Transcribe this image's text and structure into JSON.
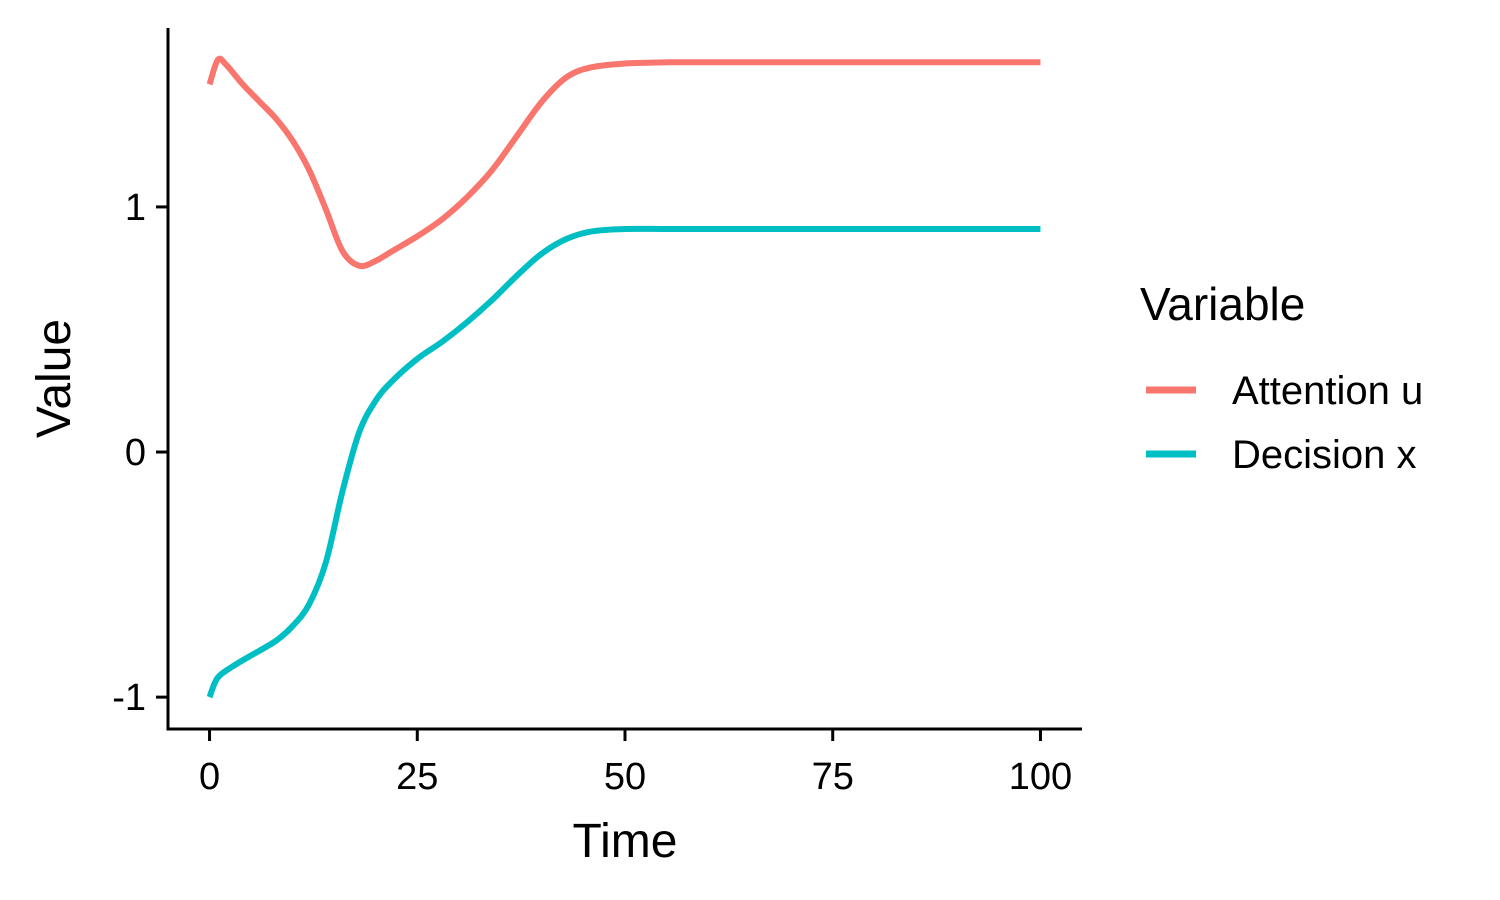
{
  "chart_data": {
    "type": "line",
    "xlabel": "Time",
    "ylabel": "Value",
    "xlim": [
      -5,
      105
    ],
    "ylim": [
      -1.13,
      1.73
    ],
    "xticks": [
      0,
      25,
      50,
      75,
      100
    ],
    "xtick_labels": [
      "0",
      "25",
      "50",
      "75",
      "100"
    ],
    "yticks": [
      -1,
      0,
      1
    ],
    "ytick_labels": [
      "-1",
      "0",
      "1"
    ],
    "grid": false,
    "legend": {
      "title": "Variable",
      "position": "right",
      "entries": [
        "Attention u",
        "Decision x"
      ]
    },
    "series": [
      {
        "name": "Attention u",
        "color": "#F8766D",
        "x": [
          0,
          1,
          2,
          4,
          6,
          8,
          10,
          12,
          14,
          16,
          18,
          20,
          22,
          25,
          28,
          31,
          34,
          37,
          40,
          43,
          46,
          50,
          55,
          60,
          70,
          80,
          90,
          100
        ],
        "y": [
          1.5,
          1.6,
          1.58,
          1.5,
          1.43,
          1.36,
          1.27,
          1.15,
          0.99,
          0.82,
          0.76,
          0.78,
          0.82,
          0.88,
          0.95,
          1.04,
          1.15,
          1.29,
          1.43,
          1.53,
          1.57,
          1.585,
          1.59,
          1.59,
          1.59,
          1.59,
          1.59,
          1.59
        ]
      },
      {
        "name": "Decision x",
        "color": "#00BFC4",
        "x": [
          0,
          1,
          3,
          5,
          8,
          10,
          12,
          14,
          16,
          18,
          20,
          22,
          25,
          28,
          31,
          34,
          37,
          40,
          43,
          46,
          50,
          55,
          60,
          70,
          80,
          90,
          100
        ],
        "y": [
          -1.0,
          -0.92,
          -0.87,
          -0.83,
          -0.77,
          -0.71,
          -0.62,
          -0.45,
          -0.16,
          0.08,
          0.21,
          0.29,
          0.38,
          0.45,
          0.53,
          0.62,
          0.72,
          0.81,
          0.87,
          0.9,
          0.91,
          0.91,
          0.91,
          0.91,
          0.91,
          0.91,
          0.91
        ]
      }
    ]
  }
}
